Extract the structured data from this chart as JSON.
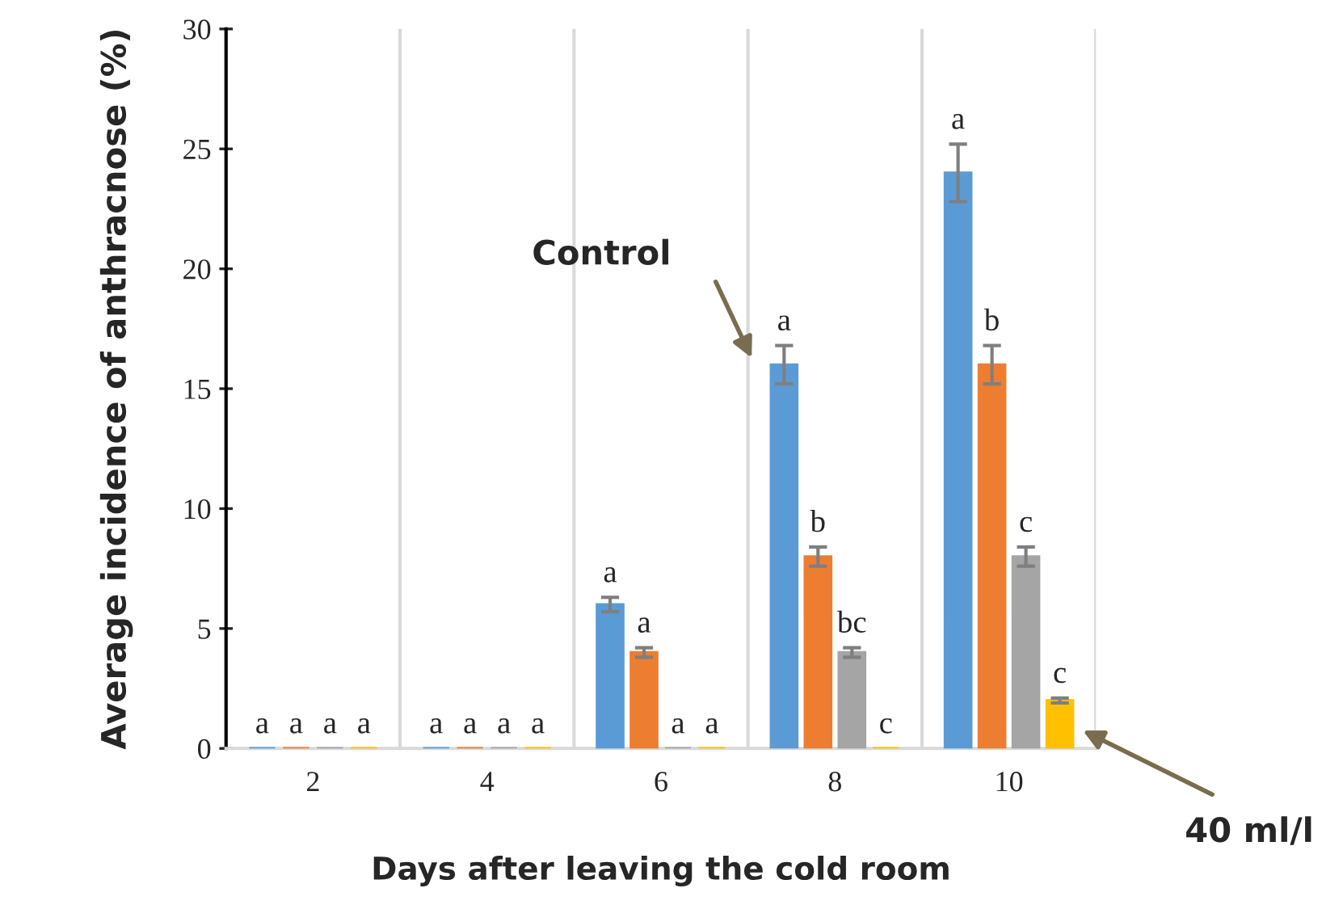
{
  "chart_data": {
    "type": "bar",
    "xlabel": "Days after leaving the cold room",
    "ylabel": "Average incidence of anthracnose (%)",
    "categories": [
      "2",
      "4",
      "6",
      "8",
      "10"
    ],
    "series": [
      {
        "color": "#5b9bd5",
        "values": [
          0,
          0,
          6,
          16,
          24
        ],
        "errors": [
          null,
          null,
          0.3,
          0.8,
          1.2
        ],
        "value_labels": [
          "a",
          "a",
          "a",
          "a",
          "a"
        ]
      },
      {
        "color": "#ed7d31",
        "values": [
          0,
          0,
          4,
          8,
          16
        ],
        "errors": [
          null,
          null,
          0.2,
          0.4,
          0.8
        ],
        "value_labels": [
          "a",
          "a",
          "a",
          "b",
          "b"
        ]
      },
      {
        "color": "#a5a5a5",
        "values": [
          0,
          0,
          0,
          4,
          8
        ],
        "errors": [
          null,
          null,
          null,
          0.2,
          0.4
        ],
        "value_labels": [
          "a",
          "a",
          "a",
          "bc",
          "c"
        ]
      },
      {
        "color": "#ffc000",
        "values": [
          0,
          0,
          0,
          0,
          2
        ],
        "errors": [
          null,
          null,
          null,
          null,
          0.1
        ],
        "value_labels": [
          "a",
          "a",
          "a",
          "c",
          "c"
        ]
      }
    ],
    "ylim": [
      0,
      30
    ],
    "yticks": [
      0,
      5,
      10,
      15,
      20,
      25,
      30
    ],
    "grid": "x",
    "annotations": [
      "Control",
      "40 ml/l"
    ]
  }
}
